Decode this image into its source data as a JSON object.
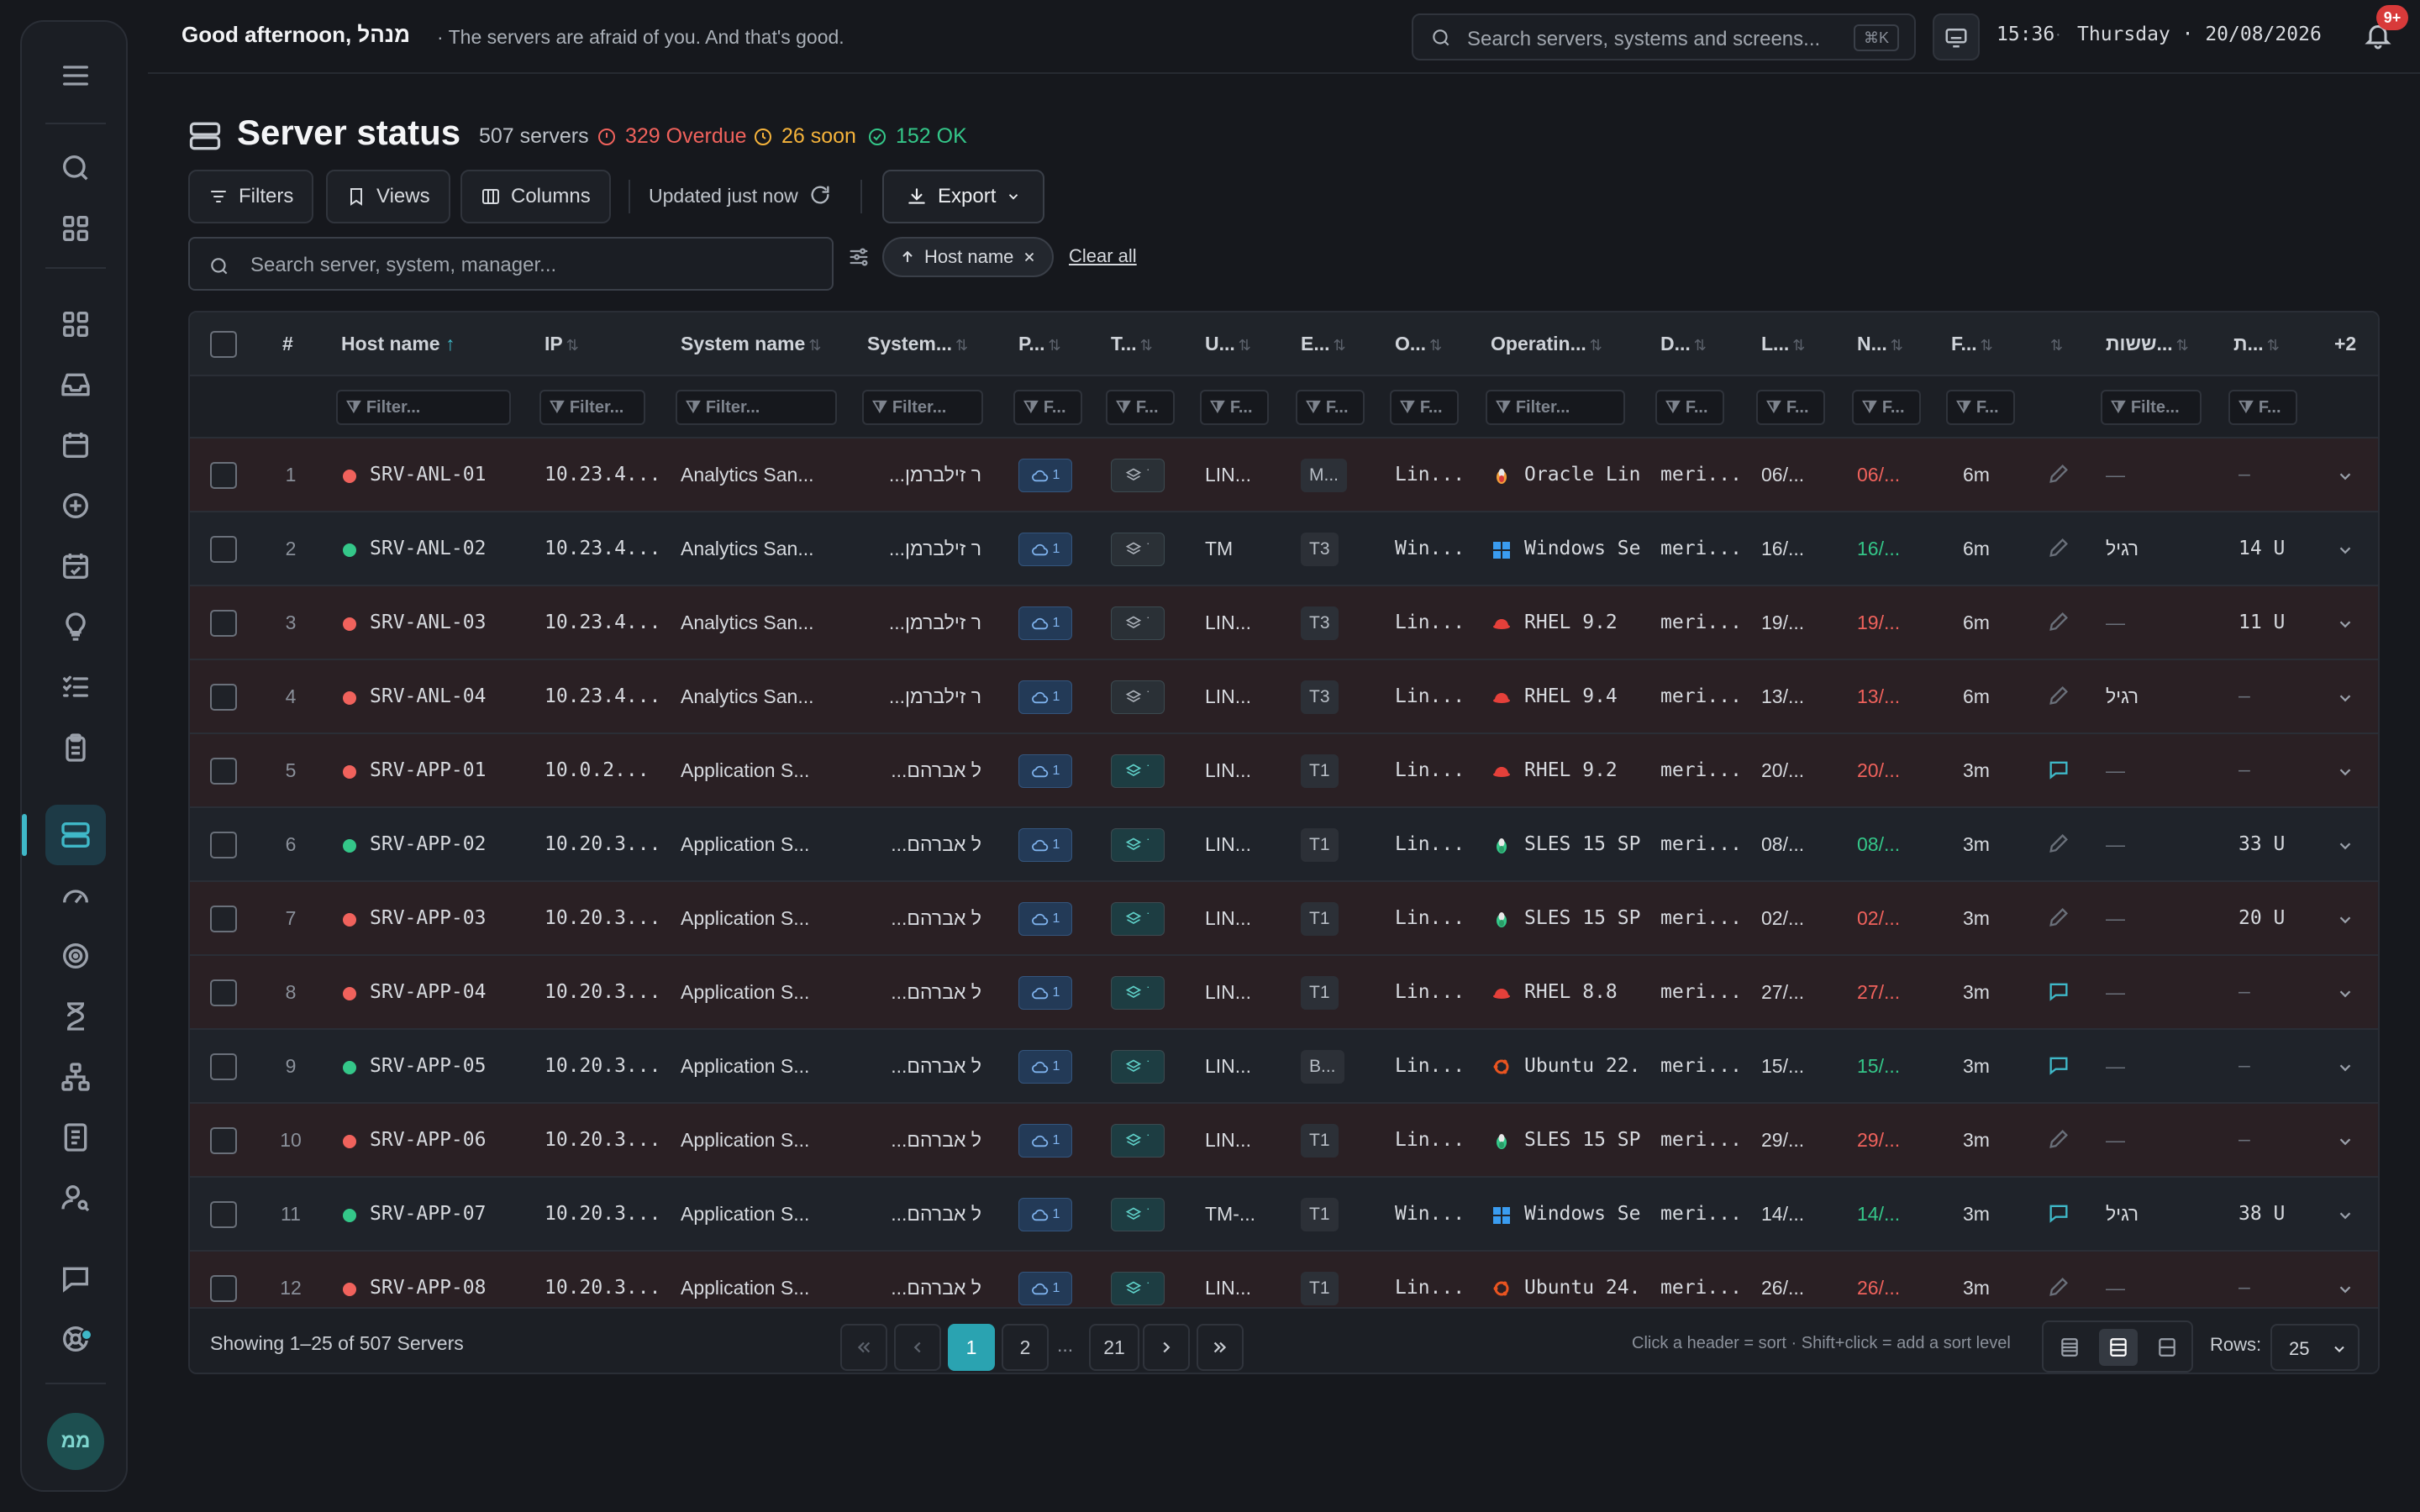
{
  "topbar": {
    "greeting": "Good afternoon, מנהל",
    "tagline": "· The servers are afraid of you. And that's good.",
    "search_placeholder": "Search servers, systems and screens...",
    "search_shortcut": "⌘K",
    "time": "15:36",
    "date": "Thursday · 20/08/2026",
    "notifications_badge": "9+"
  },
  "sidebar": {
    "avatar_initials": "ממ",
    "items": [
      "menu",
      "search",
      "apps",
      "dashboard",
      "inbox",
      "calendar",
      "add",
      "events",
      "ideas",
      "tasks",
      "clipboard",
      "servers",
      "performance",
      "targets",
      "timer",
      "hierarchy",
      "reports",
      "users",
      "chat",
      "support"
    ],
    "active": "servers"
  },
  "page": {
    "title": "Server status",
    "total": "507 servers",
    "overdue": "329 Overdue",
    "soon": "26 soon",
    "ok": "152 OK"
  },
  "colors": {
    "overdue": "#f0625c",
    "soon": "#f5b33b",
    "ok": "#34c789",
    "accent": "#2aa3b1"
  },
  "toolbar": {
    "filters_label": "Filters",
    "views_label": "Views",
    "columns_label": "Columns",
    "updated_label": "Updated just now",
    "export_label": "Export"
  },
  "table_search": {
    "placeholder": "Search server, system, manager...",
    "active_sort_chip": "Host name",
    "clear_all": "Clear all"
  },
  "columns": [
    "#",
    "Host name",
    "IP",
    "System name",
    "System...",
    "P...",
    "T...",
    "U...",
    "E...",
    "O...",
    "Operatin...",
    "D...",
    "L...",
    "N...",
    "F...",
    "",
    "ששות...",
    "ת...",
    "+2"
  ],
  "filter_placeholders": {
    "long": "Filter...",
    "short": "F...",
    "mid": "Filte..."
  },
  "rows": [
    {
      "n": "1",
      "status": "red",
      "host": "SRV-ANL-01",
      "ip": "10.23.4...",
      "system": "Analytics San...",
      "owner": "ר זילברמן...",
      "pill_p": "1",
      "t_style": "dark",
      "u": "LIN...",
      "e": "M...",
      "o": "Lin...",
      "os_icon": "oracle",
      "os": "Oracle Lin",
      "d": "meri...",
      "l": "06/...",
      "next": "06/...",
      "next_status": "red",
      "f": "6m",
      "edit": "pencil",
      "c1": "—",
      "c2": "–"
    },
    {
      "n": "2",
      "status": "green",
      "host": "SRV-ANL-02",
      "ip": "10.23.4...",
      "system": "Analytics San...",
      "owner": "ר זילברמן...",
      "pill_p": "1",
      "t_style": "dark",
      "u": "TM",
      "e": "T3",
      "o": "Win...",
      "os_icon": "windows",
      "os": "Windows Se",
      "d": "meri...",
      "l": "16/...",
      "next": "16/...",
      "next_status": "green",
      "f": "6m",
      "edit": "pencil",
      "c1": "רגיל",
      "c2": "14 U"
    },
    {
      "n": "3",
      "status": "red",
      "host": "SRV-ANL-03",
      "ip": "10.23.4...",
      "system": "Analytics San...",
      "owner": "ר זילברמן...",
      "pill_p": "1",
      "t_style": "dark",
      "u": "LIN...",
      "e": "T3",
      "o": "Lin...",
      "os_icon": "redhat",
      "os": "RHEL 9.2",
      "d": "meri...",
      "l": "19/...",
      "next": "19/...",
      "next_status": "red",
      "f": "6m",
      "edit": "pencil",
      "c1": "—",
      "c2": "11 U"
    },
    {
      "n": "4",
      "status": "red",
      "host": "SRV-ANL-04",
      "ip": "10.23.4...",
      "system": "Analytics San...",
      "owner": "ר זילברמן...",
      "pill_p": "1",
      "t_style": "dark",
      "u": "LIN...",
      "e": "T3",
      "o": "Lin...",
      "os_icon": "redhat",
      "os": "RHEL 9.4",
      "d": "meri...",
      "l": "13/...",
      "next": "13/...",
      "next_status": "red",
      "f": "6m",
      "edit": "pencil",
      "c1": "רגיל",
      "c2": "–"
    },
    {
      "n": "5",
      "status": "red",
      "host": "SRV-APP-01",
      "ip": "10.0.2...",
      "system": "Application S...",
      "owner": "ל אברהם...",
      "pill_p": "1",
      "t_style": "teal",
      "u": "LIN...",
      "e": "T1",
      "o": "Lin...",
      "os_icon": "redhat",
      "os": "RHEL 9.2",
      "d": "meri...",
      "l": "20/...",
      "next": "20/...",
      "next_status": "red",
      "f": "3m",
      "edit": "comment",
      "c1": "—",
      "c2": "–"
    },
    {
      "n": "6",
      "status": "green",
      "host": "SRV-APP-02",
      "ip": "10.20.3...",
      "system": "Application S...",
      "owner": "ל אברהם...",
      "pill_p": "1",
      "t_style": "teal",
      "u": "LIN...",
      "e": "T1",
      "o": "Lin...",
      "os_icon": "suse",
      "os": "SLES 15 SP",
      "d": "meri...",
      "l": "08/...",
      "next": "08/...",
      "next_status": "green",
      "f": "3m",
      "edit": "pencil",
      "c1": "—",
      "c2": "33 U"
    },
    {
      "n": "7",
      "status": "red",
      "host": "SRV-APP-03",
      "ip": "10.20.3...",
      "system": "Application S...",
      "owner": "ל אברהם...",
      "pill_p": "1",
      "t_style": "teal",
      "u": "LIN...",
      "e": "T1",
      "o": "Lin...",
      "os_icon": "suse",
      "os": "SLES 15 SP",
      "d": "meri...",
      "l": "02/...",
      "next": "02/...",
      "next_status": "red",
      "f": "3m",
      "edit": "pencil",
      "c1": "—",
      "c2": "20 U"
    },
    {
      "n": "8",
      "status": "red",
      "host": "SRV-APP-04",
      "ip": "10.20.3...",
      "system": "Application S...",
      "owner": "ל אברהם...",
      "pill_p": "1",
      "t_style": "teal",
      "u": "LIN...",
      "e": "T1",
      "o": "Lin...",
      "os_icon": "redhat",
      "os": "RHEL 8.8",
      "d": "meri...",
      "l": "27/...",
      "next": "27/...",
      "next_status": "red",
      "f": "3m",
      "edit": "comment",
      "c1": "—",
      "c2": "–"
    },
    {
      "n": "9",
      "status": "green",
      "host": "SRV-APP-05",
      "ip": "10.20.3...",
      "system": "Application S...",
      "owner": "ל אברהם...",
      "pill_p": "1",
      "t_style": "teal",
      "u": "LIN...",
      "e": "B...",
      "o": "Lin...",
      "os_icon": "ubuntu",
      "os": "Ubuntu 22.",
      "d": "meri...",
      "l": "15/...",
      "next": "15/...",
      "next_status": "green",
      "f": "3m",
      "edit": "comment",
      "c1": "—",
      "c2": "–"
    },
    {
      "n": "10",
      "status": "red",
      "host": "SRV-APP-06",
      "ip": "10.20.3...",
      "system": "Application S...",
      "owner": "ל אברהם...",
      "pill_p": "1",
      "t_style": "teal",
      "u": "LIN...",
      "e": "T1",
      "o": "Lin...",
      "os_icon": "suse",
      "os": "SLES 15 SP",
      "d": "meri...",
      "l": "29/...",
      "next": "29/...",
      "next_status": "red",
      "f": "3m",
      "edit": "pencil",
      "c1": "—",
      "c2": "–"
    },
    {
      "n": "11",
      "status": "green",
      "host": "SRV-APP-07",
      "ip": "10.20.3...",
      "system": "Application S...",
      "owner": "ל אברהם...",
      "pill_p": "1",
      "t_style": "teal",
      "u": "TM-...",
      "e": "T1",
      "o": "Win...",
      "os_icon": "windows",
      "os": "Windows Se",
      "d": "meri...",
      "l": "14/...",
      "next": "14/...",
      "next_status": "green",
      "f": "3m",
      "edit": "comment",
      "c1": "רגיל",
      "c2": "38 U"
    },
    {
      "n": "12",
      "status": "red",
      "host": "SRV-APP-08",
      "ip": "10.20.3...",
      "system": "Application S...",
      "owner": "ל אברהם...",
      "pill_p": "1",
      "t_style": "teal",
      "u": "LIN...",
      "e": "T1",
      "o": "Lin...",
      "os_icon": "ubuntu",
      "os": "Ubuntu 24.",
      "d": "meri...",
      "l": "26/...",
      "next": "26/...",
      "next_status": "red",
      "f": "3m",
      "edit": "pencil",
      "c1": "—",
      "c2": "–"
    }
  ],
  "footer": {
    "showing": "Showing 1–25 of 507 Servers",
    "pages": [
      "1",
      "2",
      "...",
      "21"
    ],
    "current_page": "1",
    "hint": "Click a header = sort · Shift+click = add a sort level",
    "rows_label": "Rows:",
    "rows_value": "25"
  }
}
